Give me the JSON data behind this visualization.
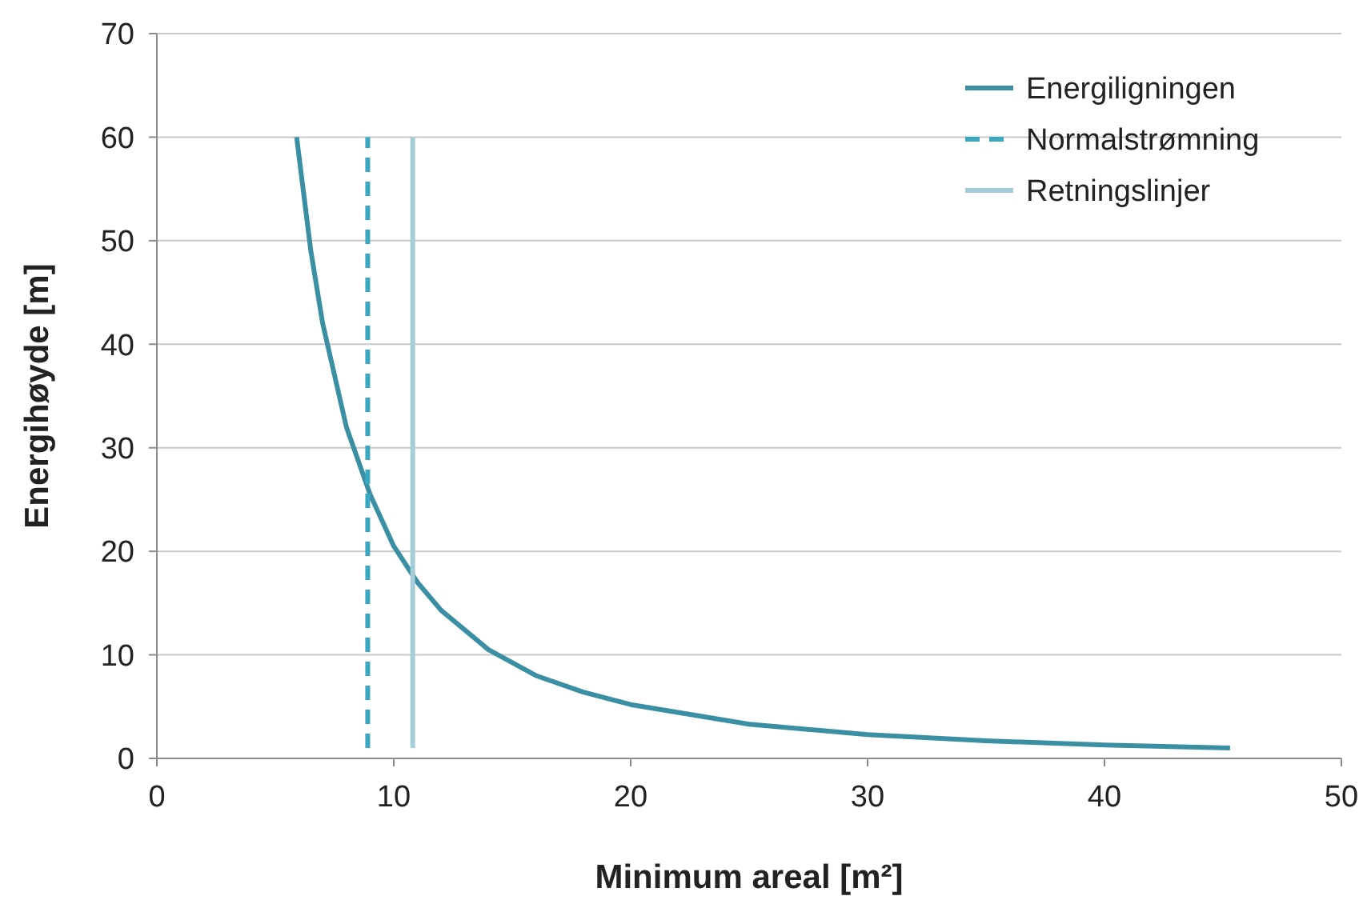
{
  "chart_data": {
    "type": "line",
    "xlabel": "Minimum areal [m²]",
    "ylabel": "Energihøyde [m]",
    "xlim": [
      0,
      50
    ],
    "ylim": [
      0,
      70
    ],
    "xticks": [
      0,
      10,
      20,
      30,
      40,
      50
    ],
    "yticks": [
      0,
      10,
      20,
      30,
      40,
      50,
      60,
      70
    ],
    "grid": "y",
    "legend": "top right",
    "marker": "none",
    "series": [
      {
        "name": "Energiligningen",
        "color": "#3b8fa3",
        "line_style": "solid",
        "x": [
          5.9,
          6.5,
          7,
          7.5,
          8,
          9,
          10,
          11,
          12,
          14,
          16,
          18,
          20,
          25,
          30,
          35,
          40,
          45.3
        ],
        "values": [
          60,
          49,
          42,
          37,
          32,
          25.5,
          20.5,
          17,
          14.3,
          10.5,
          8,
          6.4,
          5.2,
          3.3,
          2.3,
          1.7,
          1.3,
          1
        ]
      },
      {
        "name": "Normalstrømning",
        "color": "#3aa8c1",
        "line_style": "dashed",
        "x": [
          8.9,
          8.9
        ],
        "values": [
          1,
          60
        ]
      },
      {
        "name": "Retningslinjer",
        "color": "#a5cdd8",
        "line_style": "solid",
        "x": [
          10.8,
          10.8
        ],
        "values": [
          1,
          60
        ]
      }
    ]
  }
}
